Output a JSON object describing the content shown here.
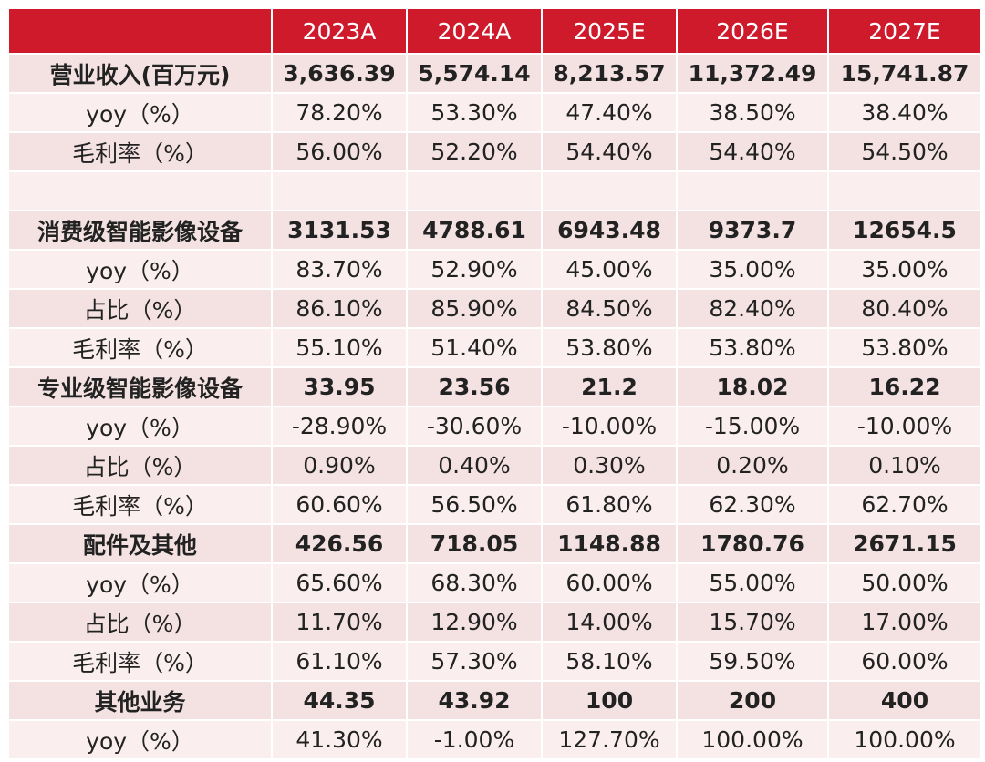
{
  "table": {
    "header": [
      "2023A",
      "2024A",
      "2025E",
      "2026E",
      "2027E"
    ],
    "rows": [
      {
        "cells": [
          "营业收入(百万元)",
          "3,636.39",
          "5,574.14",
          "8,213.57",
          "11,372.49",
          "15,741.87"
        ],
        "bold": true
      },
      {
        "cells": [
          "yoy（%）",
          "78.20%",
          "53.30%",
          "47.40%",
          "38.50%",
          "38.40%"
        ],
        "bold": false
      },
      {
        "cells": [
          "毛利率（%）",
          "56.00%",
          "52.20%",
          "54.40%",
          "54.40%",
          "54.50%"
        ],
        "bold": false
      },
      {
        "cells": [],
        "bold": false
      },
      {
        "cells": [
          "消费级智能影像设备",
          "3131.53",
          "4788.61",
          "6943.48",
          "9373.7",
          "12654.5"
        ],
        "bold": true
      },
      {
        "cells": [
          "yoy（%）",
          "83.70%",
          "52.90%",
          "45.00%",
          "35.00%",
          "35.00%"
        ],
        "bold": false
      },
      {
        "cells": [
          "占比（%）",
          "86.10%",
          "85.90%",
          "84.50%",
          "82.40%",
          "80.40%"
        ],
        "bold": false
      },
      {
        "cells": [
          "毛利率（%）",
          "55.10%",
          "51.40%",
          "53.80%",
          "53.80%",
          "53.80%"
        ],
        "bold": false
      },
      {
        "cells": [
          "专业级智能影像设备",
          "33.95",
          "23.56",
          "21.2",
          "18.02",
          "16.22"
        ],
        "bold": true
      },
      {
        "cells": [
          "yoy（%）",
          "-28.90%",
          "-30.60%",
          "-10.00%",
          "-15.00%",
          "-10.00%"
        ],
        "bold": false
      },
      {
        "cells": [
          "占比（%）",
          "0.90%",
          "0.40%",
          "0.30%",
          "0.20%",
          "0.10%"
        ],
        "bold": false
      },
      {
        "cells": [
          "毛利率（%）",
          "60.60%",
          "56.50%",
          "61.80%",
          "62.30%",
          "62.70%"
        ],
        "bold": false
      },
      {
        "cells": [
          "配件及其他",
          "426.56",
          "718.05",
          "1148.88",
          "1780.76",
          "2671.15"
        ],
        "bold": true
      },
      {
        "cells": [
          "yoy（%）",
          "65.60%",
          "68.30%",
          "60.00%",
          "55.00%",
          "50.00%"
        ],
        "bold": false
      },
      {
        "cells": [
          "占比（%）",
          "11.70%",
          "12.90%",
          "14.00%",
          "15.70%",
          "17.00%"
        ],
        "bold": false
      },
      {
        "cells": [
          "毛利率（%）",
          "61.10%",
          "57.30%",
          "58.10%",
          "59.50%",
          "60.00%"
        ],
        "bold": false
      },
      {
        "cells": [
          "其他业务",
          "44.35",
          "43.92",
          "100",
          "200",
          "400"
        ],
        "bold": true
      },
      {
        "cells": [
          "yoy（%）",
          "41.30%",
          "-1.00%",
          "127.70%",
          "100.00%",
          "100.00%"
        ],
        "bold": false
      }
    ]
  }
}
